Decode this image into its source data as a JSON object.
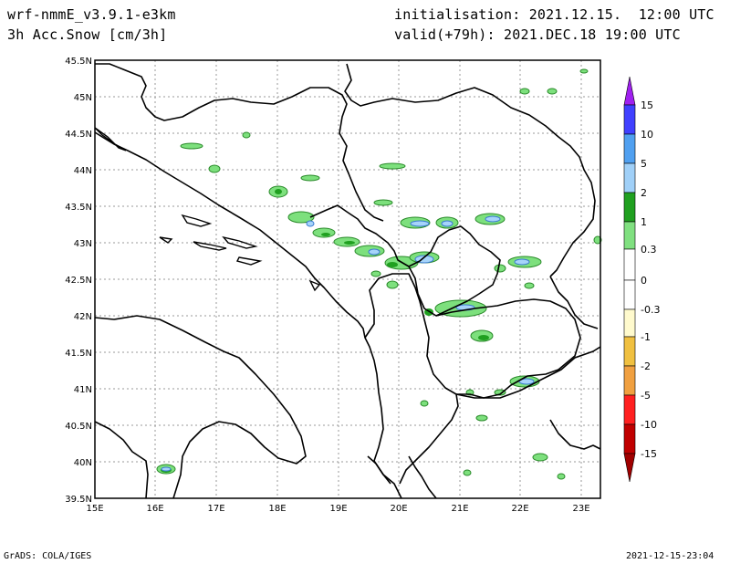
{
  "header": {
    "model": "wrf-nmmE_v3.9.1-e3km",
    "field": "3h Acc.Snow [cm/3h]",
    "init": "initialisation: 2021.12.15.  12:00 UTC",
    "valid": "valid(+79h): 2021.DEC.18 19:00 UTC"
  },
  "footer": {
    "left": "GrADS: COLA/IGES",
    "right": "2021-12-15-23:04"
  },
  "map": {
    "lat_labels": [
      "45.5N",
      "45N",
      "44.5N",
      "44N",
      "43.5N",
      "43N",
      "42.5N",
      "42N",
      "41.5N",
      "41N",
      "40.5N",
      "40N",
      "39.5N"
    ],
    "lon_labels": [
      "15E",
      "16E",
      "17E",
      "18E",
      "19E",
      "20E",
      "21E",
      "22E",
      "23E"
    ],
    "lat_range": [
      39.5,
      45.5
    ],
    "lon_range": [
      15,
      23.3
    ]
  },
  "legend": {
    "labels": [
      "15",
      "10",
      "5",
      "2",
      "1",
      "0.3",
      "0",
      "-0.3",
      "-1",
      "-2",
      "-5",
      "-10",
      "-15"
    ],
    "colors": [
      "#a020f0",
      "#4040ff",
      "#50a0f0",
      "#a0d0f8",
      "#20a020",
      "#80e080",
      "#ffffff",
      "#ffffff",
      "#fffacd",
      "#f0c040",
      "#f0a040",
      "#ff2020",
      "#c00000",
      "#a00000"
    ]
  }
}
